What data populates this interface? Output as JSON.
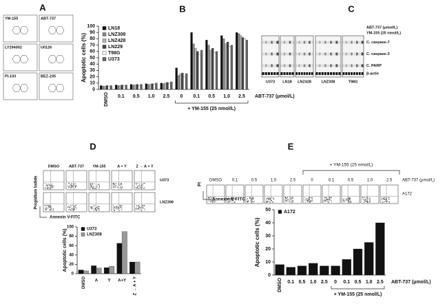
{
  "panel_labels": [
    "A",
    "B",
    "C",
    "D",
    "E"
  ],
  "compounds": [
    "YM-155",
    "ABT-737",
    "LY294002",
    "U0126",
    "PI-103",
    "BEZ-235"
  ],
  "blot": {
    "conditions": [
      "ABT-737 (μmol/L)",
      "YM-155 (25 nmol/L)"
    ],
    "proteins": [
      "C. caspase-7",
      "C. caspase-3",
      "C. PARP",
      "β-actin"
    ],
    "cell_lines": [
      "U373",
      "LN18",
      "LNZ428",
      "LNZ308",
      "T98G"
    ]
  },
  "flow_d": {
    "columns": [
      "DMSO",
      "ABT-737",
      "YM-155",
      "A + Y",
      "Z → A + Y"
    ],
    "rows": [
      "U373",
      "LNZ308"
    ],
    "y_label": "Propidium Iodide",
    "x_label": "Annexin V-FITC"
  },
  "flow_e": {
    "treatment": "+ YM-155 (25 nmol/L)",
    "columns": [
      "DMSO",
      "0.1",
      "0.5",
      "1.0",
      "2.5",
      "0",
      "0.1",
      "0.5",
      "1.0",
      "2.5"
    ],
    "dose_label": "ABT-737 (μmol/L)",
    "row": "A172",
    "y_label": "PI",
    "x_label": "Annexin V-FITC"
  },
  "chart_data": [
    {
      "type": "bar",
      "y_label": "Apoptotic cells (%)",
      "x_label": "ABT-737 (μmol/L)",
      "bracket_label": "+ YM-155 (25 nmol/L)",
      "categories": [
        "DMSO",
        "0.1",
        "0.5",
        "1.0",
        "2.5",
        "0",
        "0.1",
        "0.5",
        "1.0",
        "2.5"
      ],
      "series": [
        {
          "name": "LN18",
          "color": "#111111",
          "values": [
            6,
            7,
            8,
            9,
            10,
            34,
            90,
            78,
            85,
            90
          ]
        },
        {
          "name": "LNZ308",
          "color": "#8a8a8a",
          "values": [
            5,
            6,
            7,
            8,
            9,
            22,
            72,
            70,
            80,
            88
          ]
        },
        {
          "name": "LNZ428",
          "color": "#b5b5b5",
          "values": [
            5,
            6,
            7,
            8,
            10,
            24,
            65,
            62,
            72,
            85
          ]
        },
        {
          "name": "LN229",
          "color": "#444444",
          "values": [
            6,
            7,
            8,
            9,
            11,
            26,
            60,
            65,
            75,
            82
          ]
        },
        {
          "name": "T98G",
          "color": "#ffffff",
          "values": [
            5,
            6,
            6,
            8,
            9,
            20,
            55,
            58,
            68,
            80
          ]
        },
        {
          "name": "U373",
          "color": "#666666",
          "values": [
            6,
            7,
            8,
            10,
            12,
            25,
            62,
            60,
            70,
            78
          ]
        }
      ],
      "ylim": [
        0,
        100
      ],
      "yticks": [
        0,
        10,
        20,
        30,
        40,
        50,
        60,
        70,
        80,
        90,
        100
      ],
      "legend": "upper left"
    },
    {
      "type": "bar",
      "y_label": "Apoptotic cells (%)",
      "categories": [
        "DMSO",
        "A",
        "Y",
        "A+Y",
        "Z → A + Y"
      ],
      "series": [
        {
          "name": "U373",
          "color": "#111111",
          "values": [
            8,
            17,
            13,
            65,
            25
          ]
        },
        {
          "name": "LNZ308",
          "color": "#999999",
          "values": [
            6,
            12,
            16,
            90,
            25
          ]
        }
      ],
      "ylim": [
        0,
        100
      ],
      "yticks": [
        0,
        20,
        40,
        60,
        80,
        100
      ],
      "legend": "upper left"
    },
    {
      "type": "bar",
      "y_label": "Apoptotic cells (%)",
      "x_label": "ABT-737 (μmol/L)",
      "bracket_label": "+ YM-155 (25 nmol/L)",
      "categories": [
        "DMSO",
        "0.1",
        "0.5",
        "1.0",
        "2.5",
        "0",
        "0.1",
        "0.5",
        "1.0",
        "2.5"
      ],
      "series": [
        {
          "name": "A172",
          "color": "#111111",
          "values": [
            8,
            6,
            7,
            9,
            7,
            7,
            12,
            20,
            25,
            40
          ]
        }
      ],
      "ylim": [
        0,
        50
      ],
      "yticks": [
        0,
        10,
        20,
        30,
        40,
        50
      ],
      "legend": "upper left"
    }
  ]
}
